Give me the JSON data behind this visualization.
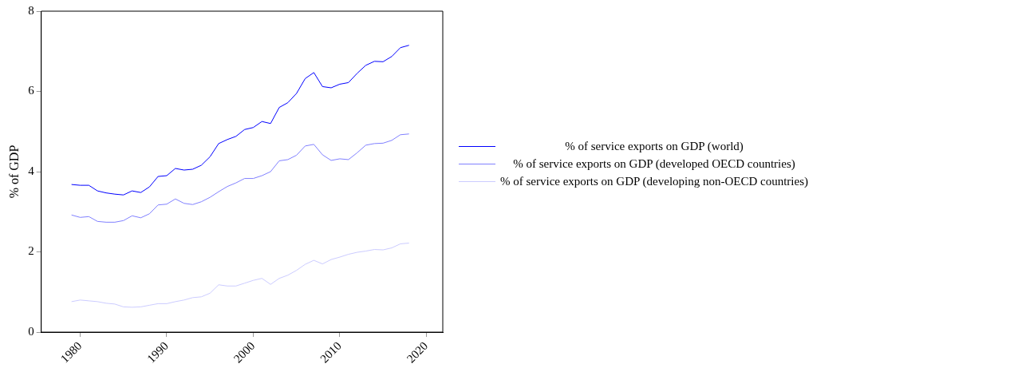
{
  "chart_data": {
    "type": "line",
    "ylabel": "% of GDP",
    "x": [
      1979,
      1980,
      1981,
      1982,
      1983,
      1984,
      1985,
      1986,
      1987,
      1988,
      1989,
      1990,
      1991,
      1992,
      1993,
      1994,
      1995,
      1996,
      1997,
      1998,
      1999,
      2000,
      2001,
      2002,
      2003,
      2004,
      2005,
      2006,
      2007,
      2008,
      2009,
      2010,
      2011,
      2012,
      2013,
      2014,
      2015,
      2016,
      2017,
      2018
    ],
    "xlim": [
      1975.5,
      2021.9
    ],
    "xticks": [
      1980,
      1990,
      2000,
      2010,
      2020
    ],
    "ylim": [
      0,
      8
    ],
    "yticks": [
      0,
      2,
      4,
      6,
      8
    ],
    "series": [
      {
        "name": "% of service exports on GDP (world)",
        "color": "#0000ff",
        "values": [
          3.68,
          3.66,
          3.66,
          3.52,
          3.47,
          3.44,
          3.42,
          3.52,
          3.48,
          3.62,
          3.88,
          3.9,
          4.08,
          4.04,
          4.06,
          4.16,
          4.37,
          4.7,
          4.8,
          4.88,
          5.05,
          5.1,
          5.25,
          5.2,
          5.6,
          5.72,
          5.95,
          6.32,
          6.47,
          6.12,
          6.09,
          6.18,
          6.22,
          6.45,
          6.65,
          6.75,
          6.74,
          6.87,
          7.09,
          7.15
        ]
      },
      {
        "name": "% of service exports on GDP (developed OECD countries)",
        "color": "#8080ff",
        "values": [
          2.92,
          2.86,
          2.88,
          2.76,
          2.74,
          2.74,
          2.78,
          2.9,
          2.85,
          2.95,
          3.17,
          3.19,
          3.32,
          3.21,
          3.18,
          3.25,
          3.36,
          3.5,
          3.63,
          3.72,
          3.83,
          3.83,
          3.9,
          4.0,
          4.27,
          4.3,
          4.41,
          4.64,
          4.68,
          4.42,
          4.28,
          4.32,
          4.3,
          4.47,
          4.66,
          4.7,
          4.71,
          4.78,
          4.92,
          4.94
        ]
      },
      {
        "name": "% of service exports on GDP (developing non-OECD countries)",
        "color": "#ccccff",
        "values": [
          0.76,
          0.8,
          0.78,
          0.76,
          0.72,
          0.7,
          0.63,
          0.62,
          0.63,
          0.67,
          0.71,
          0.71,
          0.76,
          0.8,
          0.86,
          0.88,
          0.97,
          1.18,
          1.15,
          1.15,
          1.22,
          1.29,
          1.34,
          1.19,
          1.34,
          1.42,
          1.54,
          1.69,
          1.79,
          1.7,
          1.81,
          1.87,
          1.94,
          1.99,
          2.02,
          2.06,
          2.05,
          2.1,
          2.2,
          2.22
        ]
      }
    ],
    "legend": "right",
    "grid": false,
    "marker": "none",
    "line_style": "solid"
  }
}
